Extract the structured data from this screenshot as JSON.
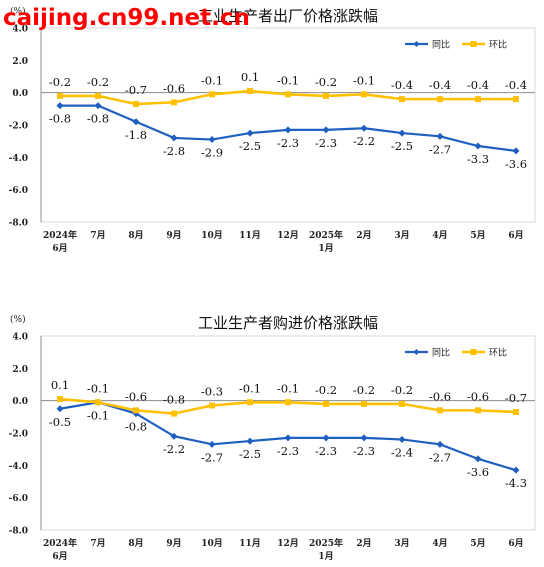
{
  "watermark": "caijing.cn99.net.cn",
  "colors": {
    "yoy": "#1f5fbf",
    "mom": "#ffc000",
    "axis": "#8c8c8c",
    "grid": "#d9d9d9",
    "text": "#222222",
    "watermark": "#ff0000"
  },
  "chart_data": [
    {
      "type": "line",
      "title": "工业生产者出厂价格涨跌幅",
      "ylabel": "(%)",
      "ylim": [
        -8.0,
        4.0
      ],
      "yticks": [
        "4.0",
        "2.0",
        "0.0",
        "-2.0",
        "-4.0",
        "-6.0",
        "-8.0"
      ],
      "categories": [
        "2024年\n6月",
        "7月",
        "8月",
        "9月",
        "10月",
        "11月",
        "12月",
        "2025年\n1月",
        "2月",
        "3月",
        "4月",
        "5月",
        "6月"
      ],
      "legend_position": "top-right",
      "series": [
        {
          "name": "同比",
          "values": [
            -0.8,
            -0.8,
            -1.8,
            -2.8,
            -2.9,
            -2.5,
            -2.3,
            -2.3,
            -2.2,
            -2.5,
            -2.7,
            -3.3,
            -3.6
          ],
          "labels": [
            "-0.8",
            "-0.8",
            "-1.8",
            "-2.8",
            "-2.9",
            "-2.5",
            "-2.3",
            "-2.3",
            "-2.2",
            "-2.5",
            "-2.7",
            "-3.3",
            "-3.6"
          ]
        },
        {
          "name": "环比",
          "values": [
            -0.2,
            -0.2,
            -0.7,
            -0.6,
            -0.1,
            0.1,
            -0.1,
            -0.2,
            -0.1,
            -0.4,
            -0.4,
            -0.4,
            -0.4
          ],
          "labels": [
            "-0.2",
            "-0.2",
            "-0.7",
            "-0.6",
            "-0.1",
            "0.1",
            "-0.1",
            "-0.2",
            "-0.1",
            "-0.4",
            "-0.4",
            "-0.4",
            "-0.4"
          ]
        }
      ]
    },
    {
      "type": "line",
      "title": "工业生产者购进价格涨跌幅",
      "ylabel": "(%)",
      "ylim": [
        -8.0,
        4.0
      ],
      "yticks": [
        "4.0",
        "2.0",
        "0.0",
        "-2.0",
        "-4.0",
        "-6.0",
        "-8.0"
      ],
      "categories": [
        "2024年\n6月",
        "7月",
        "8月",
        "9月",
        "10月",
        "11月",
        "12月",
        "2025年\n1月",
        "2月",
        "3月",
        "4月",
        "5月",
        "6月"
      ],
      "legend_position": "top-right",
      "series": [
        {
          "name": "同比",
          "values": [
            -0.5,
            -0.1,
            -0.8,
            -2.2,
            -2.7,
            -2.5,
            -2.3,
            -2.3,
            -2.3,
            -2.4,
            -2.7,
            -3.6,
            -4.3
          ],
          "labels": [
            "-0.5",
            "-0.1",
            "-0.8",
            "-2.2",
            "-2.7",
            "-2.5",
            "-2.3",
            "-2.3",
            "-2.3",
            "-2.4",
            "-2.7",
            "-3.6",
            "-4.3"
          ]
        },
        {
          "name": "环比",
          "values": [
            0.1,
            -0.1,
            -0.6,
            -0.8,
            -0.3,
            -0.1,
            -0.1,
            -0.2,
            -0.2,
            -0.2,
            -0.6,
            -0.6,
            -0.7
          ],
          "labels": [
            "0.1",
            "-0.1",
            "-0.6",
            "-0.8",
            "-0.3",
            "-0.1",
            "-0.1",
            "-0.2",
            "-0.2",
            "-0.2",
            "-0.6",
            "-0.6",
            "-0.7"
          ]
        }
      ]
    }
  ]
}
